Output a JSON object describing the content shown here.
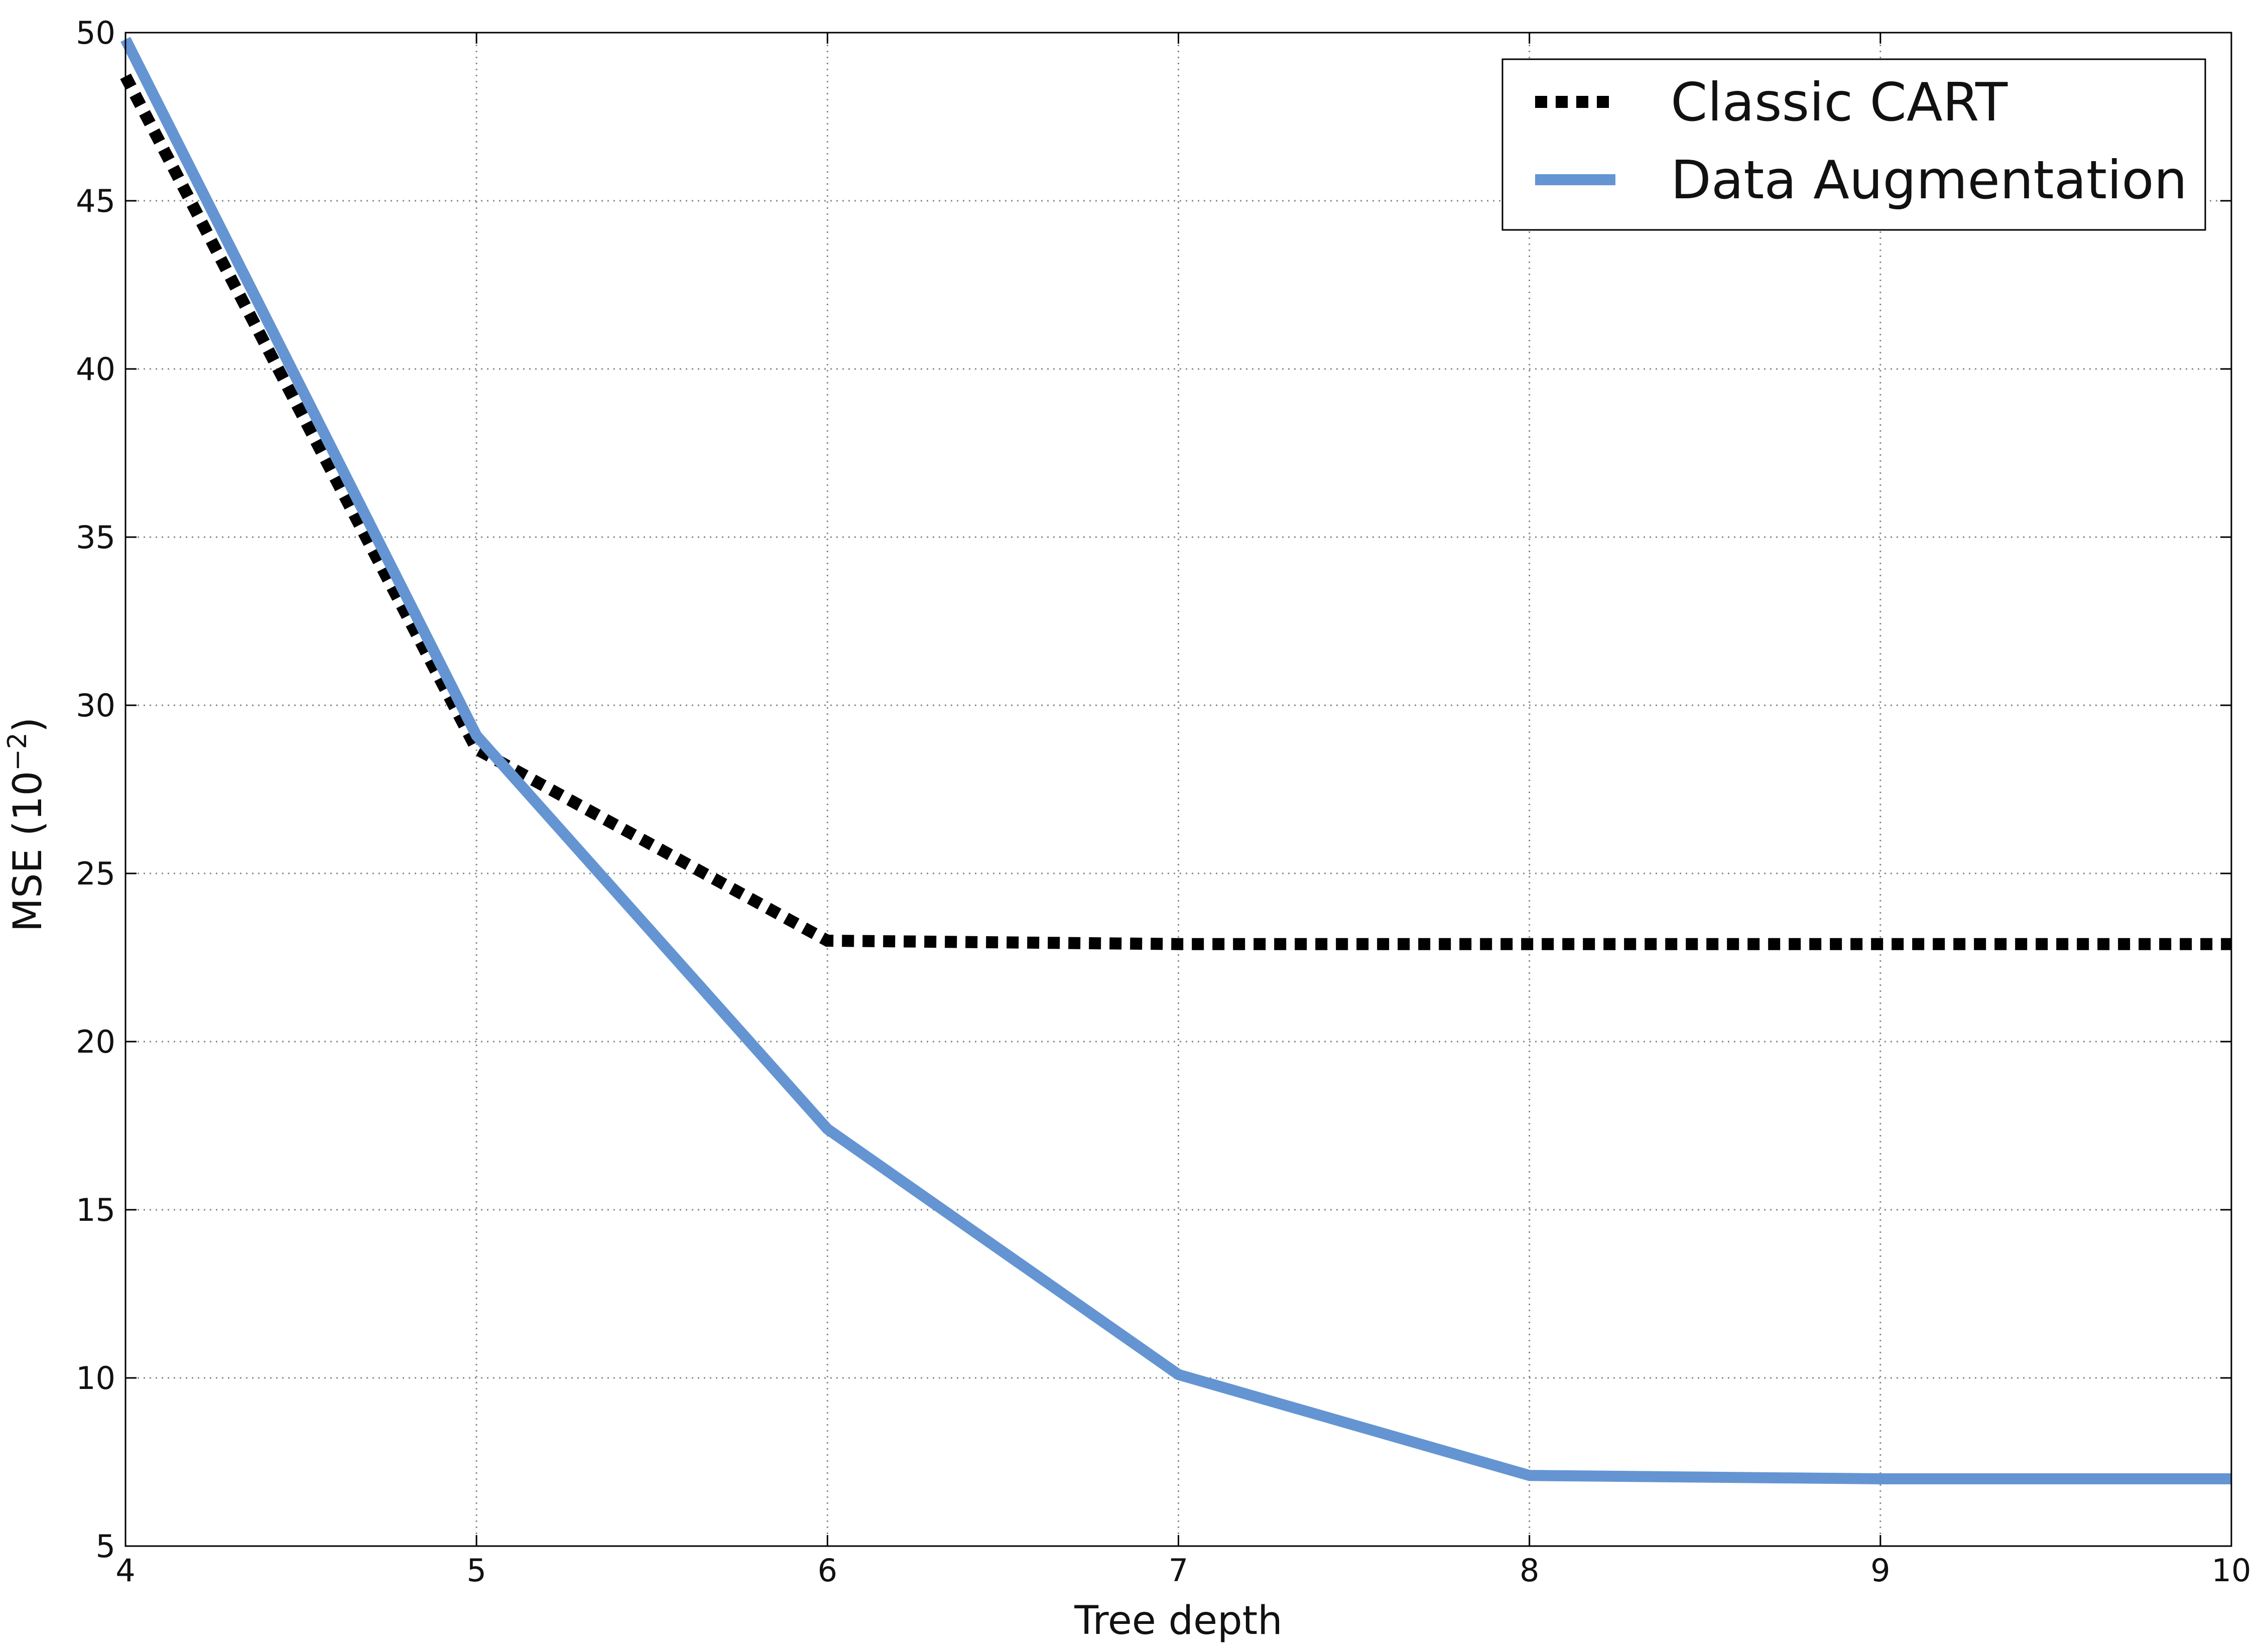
{
  "chart_data": {
    "type": "line",
    "x": [
      4,
      5,
      6,
      7,
      8,
      9,
      10
    ],
    "series": [
      {
        "name": "Classic CART",
        "values": [
          48.7,
          28.7,
          23.0,
          22.9,
          22.9,
          22.9,
          22.9
        ],
        "color": "#000000",
        "style": "dotted"
      },
      {
        "name": "Data Augmentation",
        "values": [
          49.8,
          29.1,
          17.4,
          10.1,
          7.1,
          7.0,
          7.0
        ],
        "color": "#6495d2",
        "style": "solid"
      }
    ],
    "xlabel": "Tree depth",
    "ylabel": "MSE  (10",
    "ylabel_exponent": "−2",
    "ylabel_close": ")",
    "xlim": [
      4,
      10
    ],
    "ylim": [
      5,
      50
    ],
    "xticks": [
      "4",
      "5",
      "6",
      "7",
      "8",
      "9",
      "10"
    ],
    "yticks": [
      "5",
      "10",
      "15",
      "20",
      "25",
      "30",
      "35",
      "40",
      "45",
      "50"
    ],
    "grid": true,
    "legend_position": "top-right"
  }
}
